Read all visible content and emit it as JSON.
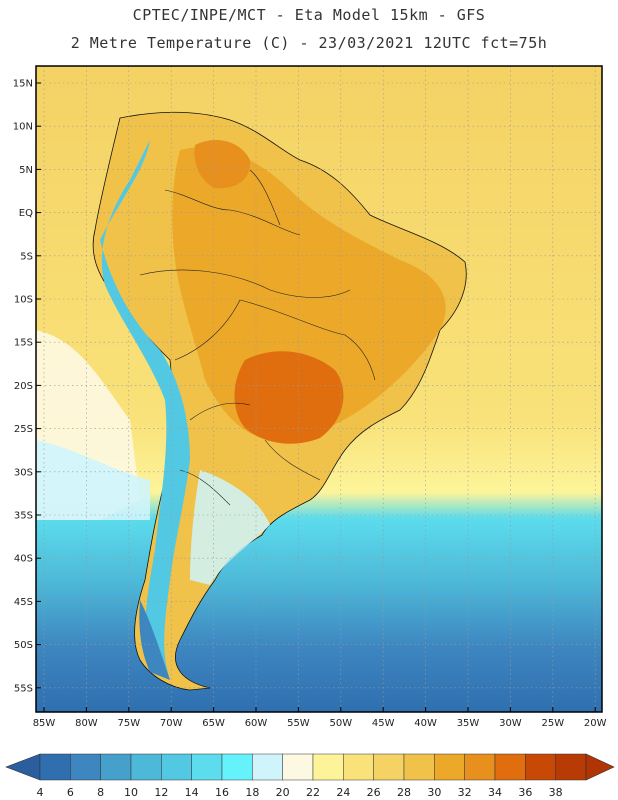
{
  "header": {
    "line1": "CPTEC/INPE/MCT -  Eta Model 15km - GFS",
    "line2": "2 Metre Temperature (C) - 23/03/2021 12UTC fct=75h"
  },
  "map": {
    "lat_labels": [
      "15N",
      "10N",
      "5N",
      "EQ",
      "5S",
      "10S",
      "15S",
      "20S",
      "25S",
      "30S",
      "35S",
      "40S",
      "45S",
      "50S",
      "55S"
    ],
    "lon_labels": [
      "85W",
      "80W",
      "75W",
      "70W",
      "65W",
      "60W",
      "55W",
      "50W",
      "45W",
      "40W",
      "35W",
      "30W",
      "25W",
      "20W"
    ]
  },
  "colorbar": {
    "labels": [
      "4",
      "6",
      "8",
      "10",
      "12",
      "14",
      "16",
      "18",
      "20",
      "22",
      "24",
      "26",
      "28",
      "30",
      "32",
      "34",
      "36",
      "38"
    ],
    "colors": [
      "#2f6fb0",
      "#3d86c0",
      "#45a0cc",
      "#4db8d8",
      "#52c8e2",
      "#5cdcec",
      "#66f2fa",
      "#cff4fc",
      "#fdf8e2",
      "#fdf49a",
      "#f9e27a",
      "#f4d264",
      "#f0c24a",
      "#eca828",
      "#e8901e",
      "#e06e0e",
      "#c84806",
      "#b83a04"
    ],
    "under_color": "#2a5e9e",
    "over_color": "#b03404"
  }
}
